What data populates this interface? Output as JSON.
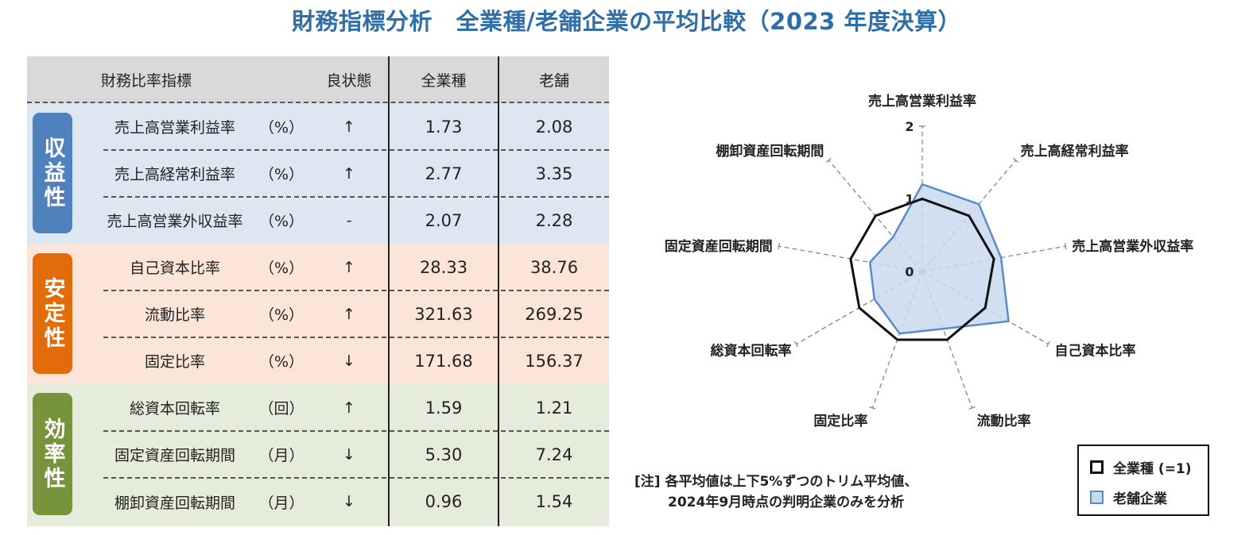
{
  "title": "財務指標分析　全業種/老舗企業の平均比較（2023 年度決算）",
  "table": {
    "headers": [
      "財務比率指標",
      "良状態",
      "全業種",
      "老舗"
    ],
    "groups": [
      {
        "label": "収益性",
        "color": "#4f81bd"
      },
      {
        "label": "安定性",
        "color": "#e36c0a"
      },
      {
        "label": "効率性",
        "color": "#77933c"
      }
    ],
    "rows": [
      {
        "name": "売上高営業利益率",
        "unit": "（%）",
        "good": "↑",
        "all": "1.73",
        "old": "2.08"
      },
      {
        "name": "売上高経常利益率",
        "unit": "（%）",
        "good": "↑",
        "all": "2.77",
        "old": "3.35"
      },
      {
        "name": "売上高営業外収益率",
        "unit": "（%）",
        "good": "-",
        "all": "2.07",
        "old": "2.28"
      },
      {
        "name": "自己資本比率",
        "unit": "（%）",
        "good": "↑",
        "all": "28.33",
        "old": "38.76"
      },
      {
        "name": "流動比率",
        "unit": "（%）",
        "good": "↑",
        "all": "321.63",
        "old": "269.25"
      },
      {
        "name": "固定比率",
        "unit": "（%）",
        "good": "↓",
        "all": "171.68",
        "old": "156.37"
      },
      {
        "name": "総資本回転率",
        "unit": "（回）",
        "good": "↑",
        "all": "1.59",
        "old": "1.21"
      },
      {
        "name": "固定資産回転期間",
        "unit": "（月）",
        "good": "↓",
        "all": "5.30",
        "old": "7.24"
      },
      {
        "name": "棚卸資産回転期間",
        "unit": "（月）",
        "good": "↓",
        "all": "0.96",
        "old": "1.54"
      }
    ]
  },
  "chart_data": {
    "type": "radar",
    "categories": [
      "売上高営業利益率",
      "売上高経常利益率",
      "売上高営業外収益率",
      "自己資本比率",
      "流動比率",
      "固定比率",
      "総資本回転率",
      "固定資産回転期間",
      "棚卸資産回転期間"
    ],
    "tick_labels": [
      "0",
      "1",
      "2"
    ],
    "range": [
      0,
      2
    ],
    "series": [
      {
        "name": "全業種 (=1)",
        "values": [
          1,
          1,
          1,
          1,
          1,
          1,
          1,
          1,
          1
        ],
        "color": "#111111",
        "fill": "none"
      },
      {
        "name": "老舗企業",
        "values": [
          1.2,
          1.21,
          1.1,
          1.37,
          0.84,
          0.91,
          0.76,
          0.73,
          0.62
        ],
        "color": "#5b8bc9",
        "fill": "#c9d9ee"
      }
    ],
    "legend_position": "bottom-right"
  },
  "note": {
    "line1": "[注] 各平均値は上下5%ずつのトリム平均値、",
    "line2": "2024年9月時点の判明企業のみを分析"
  },
  "legend": {
    "all_label": "全業種 (=1)",
    "old_label": "老舗企業"
  }
}
